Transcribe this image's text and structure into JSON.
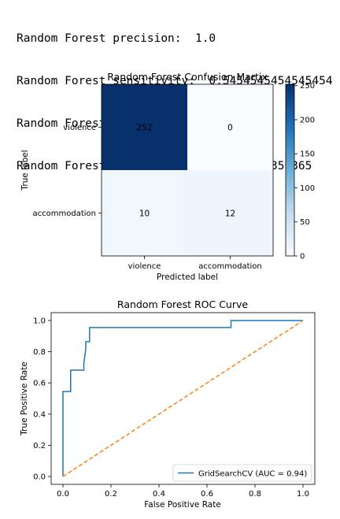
{
  "metrics": [
    "Random Forest precision:  1.0",
    "Random Forest sensitivity:  0.5454545454545454",
    "Random Forest specificity:  1.0",
    "Random Forest accuracy:  0.9635036496350365"
  ],
  "colors": {
    "cmap_low": "#f7fbff",
    "cmap_high": "#08306b",
    "roc_line": "#1f77b4",
    "chance_line": "#ff7f0e"
  },
  "chart_data": [
    {
      "type": "heatmap",
      "title": "Random Forest Confusion Martix",
      "xlabel": "Predicted label",
      "ylabel": "True label",
      "rows": [
        "violence",
        "accommodation"
      ],
      "cols": [
        "violence",
        "accommodation"
      ],
      "values": [
        [
          252,
          0
        ],
        [
          10,
          12
        ]
      ],
      "colorbar": {
        "min": 0,
        "max": 252,
        "ticks": [
          "0",
          "50",
          "100",
          "150",
          "200",
          "250"
        ]
      }
    },
    {
      "type": "line",
      "title": "Random Forest ROC Curve",
      "xlabel": "False Positive Rate",
      "ylabel": "True Positive Rate",
      "xlim": [
        0,
        1
      ],
      "ylim": [
        0,
        1
      ],
      "xticks": [
        "0.0",
        "0.2",
        "0.4",
        "0.6",
        "0.8",
        "1.0"
      ],
      "yticks": [
        "0.0",
        "0.2",
        "0.4",
        "0.6",
        "0.8",
        "1.0"
      ],
      "legend_position": "lower-right",
      "series": [
        {
          "name": "GridSearchCV (AUC = 0.94)",
          "x": [
            0.0,
            0.0,
            0.0,
            0.0,
            0.032,
            0.032,
            0.032,
            0.087,
            0.087,
            0.095,
            0.095,
            0.111,
            0.111,
            0.7,
            0.7,
            1.0
          ],
          "y": [
            0.0,
            0.545,
            0.545,
            0.545,
            0.545,
            0.636,
            0.682,
            0.682,
            0.727,
            0.818,
            0.864,
            0.864,
            0.955,
            0.955,
            1.0,
            1.0
          ]
        },
        {
          "x": [
            0,
            1
          ],
          "y": [
            0,
            1
          ],
          "style": "dashed"
        }
      ]
    }
  ]
}
